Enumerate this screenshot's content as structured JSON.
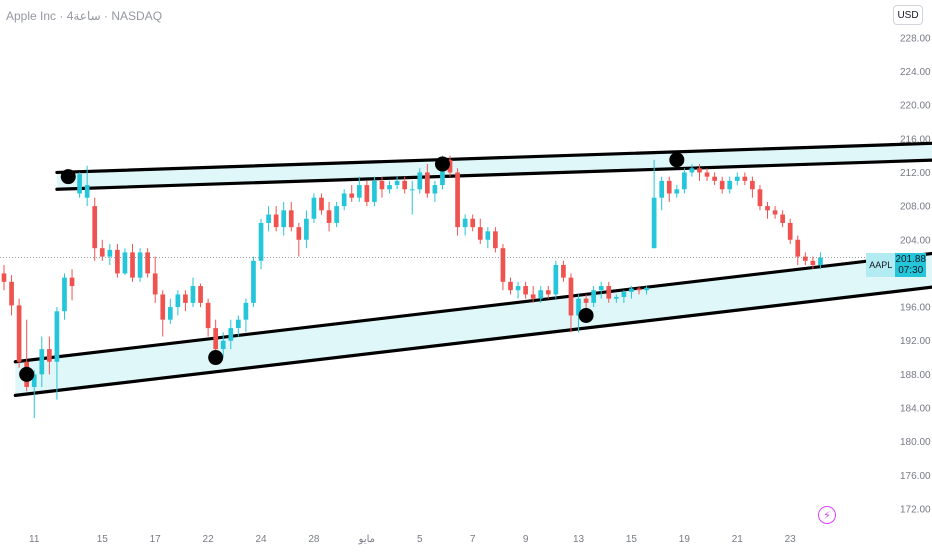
{
  "header": {
    "title": "Apple Inc · 4ساعة · NASDAQ",
    "currency": "USD"
  },
  "price_label": {
    "symbol": "AAPL",
    "price": "201.88",
    "countdown": "07:30"
  },
  "colors": {
    "up": "#26c6da",
    "down": "#ef5350",
    "channel_fill": "#e0f7fa",
    "line": "#000000"
  },
  "chart_data": {
    "type": "candlestick",
    "y_axis": {
      "ticks": [
        172,
        176,
        180,
        184,
        188,
        192,
        196,
        200,
        204,
        208,
        212,
        216,
        220,
        224,
        228
      ],
      "tick_labels": [
        "172.00",
        "176.00",
        "180.00",
        "184.00",
        "188.00",
        "192.00",
        "196.00",
        "200.00",
        "204.00",
        "208.00",
        "212.00",
        "216.00",
        "220.00",
        "224.00",
        "228.00"
      ],
      "range": [
        169.5,
        232.5
      ]
    },
    "x_axis": {
      "tick_labels": [
        "11",
        "15",
        "17",
        "22",
        "24",
        "28",
        "مايو",
        "5",
        "7",
        "9",
        "13",
        "15",
        "19",
        "21",
        "23"
      ],
      "tick_index": [
        1,
        10,
        17,
        24,
        31,
        38,
        45,
        52,
        59,
        66,
        73,
        80,
        87,
        94,
        101
      ],
      "range": [
        -3,
        106
      ]
    },
    "last_price": 201.88,
    "candles": [
      [
        -3,
        200.0,
        201.0,
        198.0,
        199.0
      ],
      [
        -2,
        199.0,
        199.8,
        195.0,
        196.2
      ],
      [
        -1,
        196.2,
        197.0,
        188.8,
        189.5
      ],
      [
        0,
        189.5,
        194.5,
        186.0,
        186.5
      ],
      [
        1,
        186.5,
        188.5,
        182.8,
        188.0
      ],
      [
        2,
        188.0,
        192.5,
        186.5,
        191.0
      ],
      [
        3,
        191.0,
        192.5,
        188.0,
        189.5
      ],
      [
        4,
        189.5,
        196.0,
        185.0,
        195.5
      ],
      [
        5,
        195.5,
        200.0,
        194.5,
        199.5
      ],
      [
        6,
        199.5,
        200.5,
        196.8,
        198.5
      ],
      [
        7,
        209.5,
        212.0,
        209.0,
        211.8
      ],
      [
        8,
        209.0,
        212.8,
        208.0,
        210.5
      ],
      [
        9,
        208.0,
        209.0,
        201.5,
        203.0
      ],
      [
        10,
        203.0,
        204.0,
        201.5,
        202.0
      ],
      [
        11,
        202.0,
        203.5,
        201.0,
        202.8
      ],
      [
        12,
        202.8,
        203.5,
        199.5,
        200.0
      ],
      [
        13,
        200.0,
        203.0,
        199.8,
        202.5
      ],
      [
        14,
        202.5,
        203.5,
        199.0,
        199.5
      ],
      [
        15,
        199.5,
        203.0,
        199.0,
        202.5
      ],
      [
        16,
        202.5,
        203.0,
        199.5,
        200.0
      ],
      [
        17,
        200.0,
        202.0,
        196.5,
        197.5
      ],
      [
        18,
        197.5,
        198.0,
        192.5,
        194.5
      ],
      [
        19,
        194.5,
        197.0,
        194.0,
        196.0
      ],
      [
        20,
        196.0,
        198.0,
        195.0,
        197.5
      ],
      [
        21,
        197.5,
        198.0,
        195.5,
        196.5
      ],
      [
        22,
        196.5,
        199.5,
        196.0,
        198.5
      ],
      [
        23,
        198.5,
        198.8,
        196.0,
        196.5
      ],
      [
        24,
        196.5,
        197.0,
        192.5,
        193.5
      ],
      [
        25,
        193.5,
        194.5,
        190.5,
        191.0
      ],
      [
        26,
        191.0,
        193.0,
        190.0,
        192.0
      ],
      [
        27,
        192.0,
        194.5,
        191.0,
        193.5
      ],
      [
        28,
        193.5,
        195.0,
        192.5,
        194.5
      ],
      [
        29,
        194.5,
        197.0,
        193.0,
        196.5
      ],
      [
        30,
        196.5,
        202.0,
        196.0,
        201.5
      ],
      [
        31,
        201.5,
        206.5,
        200.5,
        206.0
      ],
      [
        32,
        206.0,
        208.0,
        205.0,
        207.0
      ],
      [
        33,
        207.0,
        208.0,
        205.0,
        205.5
      ],
      [
        34,
        205.5,
        208.5,
        204.5,
        207.5
      ],
      [
        35,
        207.5,
        208.5,
        205.0,
        205.5
      ],
      [
        36,
        205.5,
        206.0,
        202.0,
        204.0
      ],
      [
        37,
        204.0,
        207.5,
        203.0,
        206.5
      ],
      [
        38,
        206.5,
        209.5,
        206.0,
        209.0
      ],
      [
        39,
        209.0,
        209.5,
        207.0,
        207.5
      ],
      [
        40,
        207.5,
        208.5,
        205.0,
        206.0
      ],
      [
        41,
        206.0,
        208.5,
        205.5,
        208.0
      ],
      [
        42,
        208.0,
        210.0,
        207.5,
        209.5
      ],
      [
        43,
        209.5,
        210.5,
        208.5,
        209.0
      ],
      [
        44,
        209.0,
        211.5,
        208.5,
        210.5
      ],
      [
        45,
        210.5,
        211.0,
        208.0,
        208.5
      ],
      [
        46,
        208.5,
        211.5,
        208.0,
        211.0
      ],
      [
        47,
        211.0,
        211.5,
        209.0,
        210.0
      ],
      [
        48,
        210.0,
        211.0,
        209.5,
        210.5
      ],
      [
        49,
        210.5,
        211.5,
        210.0,
        211.0
      ],
      [
        50,
        211.0,
        211.5,
        209.5,
        210.0
      ],
      [
        51,
        210.0,
        211.0,
        207.0,
        210.0
      ],
      [
        52,
        210.0,
        212.5,
        209.5,
        212.0
      ],
      [
        53,
        212.0,
        213.0,
        209.0,
        209.5
      ],
      [
        54,
        209.5,
        211.0,
        208.5,
        210.5
      ],
      [
        55,
        210.5,
        214.0,
        210.0,
        213.5
      ],
      [
        56,
        213.5,
        214.0,
        211.5,
        212.0
      ],
      [
        57,
        212.0,
        212.5,
        204.5,
        205.5
      ],
      [
        58,
        205.5,
        207.0,
        204.5,
        206.5
      ],
      [
        59,
        206.5,
        207.0,
        205.0,
        205.5
      ],
      [
        60,
        205.5,
        206.5,
        203.5,
        204.0
      ],
      [
        61,
        204.0,
        205.5,
        203.0,
        205.0
      ],
      [
        62,
        205.0,
        205.5,
        202.5,
        203.0
      ],
      [
        63,
        203.0,
        203.5,
        198.0,
        199.0
      ],
      [
        64,
        199.0,
        199.5,
        197.5,
        198.0
      ],
      [
        65,
        198.0,
        199.0,
        197.0,
        198.5
      ],
      [
        66,
        198.5,
        199.0,
        197.0,
        197.5
      ],
      [
        67,
        197.5,
        198.5,
        196.5,
        197.0
      ],
      [
        68,
        197.0,
        198.5,
        196.5,
        198.0
      ],
      [
        69,
        198.0,
        198.5,
        197.0,
        197.5
      ],
      [
        70,
        197.5,
        201.5,
        197.0,
        201.0
      ],
      [
        71,
        201.0,
        201.5,
        199.0,
        199.5
      ],
      [
        72,
        199.5,
        200.0,
        193.0,
        195.0
      ],
      [
        73,
        195.0,
        197.5,
        193.0,
        197.0
      ],
      [
        74,
        197.0,
        197.5,
        194.5,
        196.5
      ],
      [
        75,
        196.5,
        198.5,
        196.0,
        198.0
      ],
      [
        76,
        198.0,
        199.0,
        197.0,
        198.5
      ],
      [
        77,
        198.5,
        199.0,
        196.5,
        197.0
      ],
      [
        78,
        197.0,
        197.5,
        196.5,
        197.2
      ],
      [
        79,
        197.2,
        198.0,
        196.5,
        197.8
      ],
      [
        80,
        197.8,
        198.5,
        197.0,
        198.2
      ],
      [
        81,
        198.2,
        198.5,
        197.5,
        198.0
      ],
      [
        82,
        198.0,
        198.5,
        197.5,
        198.3
      ],
      [
        83,
        203.0,
        213.5,
        203.0,
        209.0
      ],
      [
        84,
        209.0,
        211.5,
        207.5,
        211.0
      ],
      [
        85,
        211.0,
        211.5,
        208.5,
        209.5
      ],
      [
        86,
        209.5,
        210.5,
        209.0,
        210.0
      ],
      [
        87,
        210.0,
        212.5,
        209.5,
        212.0
      ],
      [
        88,
        212.0,
        213.0,
        211.5,
        212.5
      ],
      [
        89,
        212.5,
        213.0,
        211.0,
        212.0
      ],
      [
        90,
        212.0,
        212.5,
        211.0,
        211.5
      ],
      [
        91,
        211.5,
        212.0,
        210.5,
        211.0
      ],
      [
        92,
        211.0,
        211.5,
        209.5,
        210.0
      ],
      [
        93,
        210.0,
        211.5,
        209.5,
        211.0
      ],
      [
        94,
        211.0,
        212.0,
        210.5,
        211.5
      ],
      [
        95,
        211.5,
        212.0,
        210.5,
        211.0
      ],
      [
        96,
        211.0,
        211.5,
        209.0,
        210.0
      ],
      [
        97,
        210.0,
        210.5,
        207.5,
        208.0
      ],
      [
        98,
        208.0,
        208.5,
        206.5,
        207.5
      ],
      [
        99,
        207.5,
        208.0,
        206.5,
        207.0
      ],
      [
        100,
        207.0,
        207.5,
        205.5,
        206.0
      ],
      [
        101,
        206.0,
        206.5,
        203.5,
        204.0
      ],
      [
        102,
        204.0,
        204.5,
        201.0,
        202.0
      ],
      [
        103,
        202.0,
        202.5,
        201.0,
        201.5
      ],
      [
        104,
        201.5,
        202.0,
        200.5,
        201.0
      ],
      [
        105,
        201.0,
        202.5,
        200.5,
        201.88
      ]
    ],
    "drawings": {
      "top_channel": [
        [
          4.0,
          212.0,
          121.0,
          215.5
        ],
        [
          4.0,
          210.0,
          121.0,
          213.5
        ]
      ],
      "bottom_channel": [
        [
          -1.5,
          189.5,
          121.0,
          202.5
        ],
        [
          -1.5,
          185.5,
          121.0,
          198.5
        ]
      ],
      "pivot_markers": [
        [
          5.5,
          211.5
        ],
        [
          0.0,
          188.0
        ],
        [
          25.0,
          190.0
        ],
        [
          55.0,
          213.0
        ],
        [
          74.0,
          195.0
        ],
        [
          86.0,
          213.5
        ]
      ]
    }
  }
}
